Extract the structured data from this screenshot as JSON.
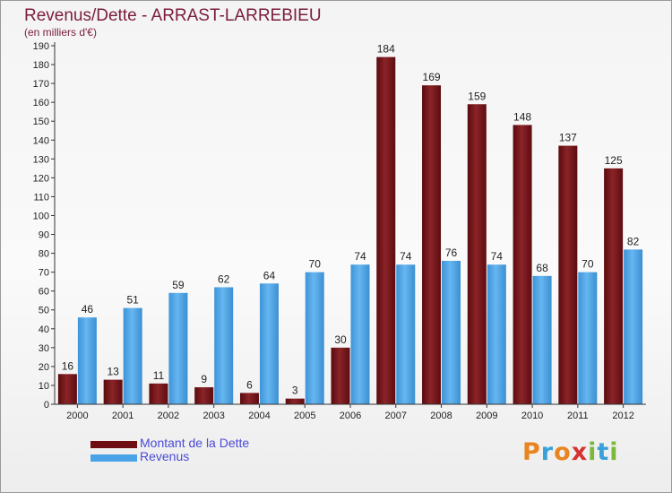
{
  "title": "Revenus/Dette - ARRAST-LARREBIEU",
  "subtitle": "(en milliers d'€)",
  "logo": {
    "text": "Proxiti",
    "colors": [
      "#e8851f",
      "#3aa0d8",
      "#e8851f",
      "#d6322e",
      "#7bb83b",
      "#3aa0d8",
      "#7bb83b"
    ]
  },
  "colors": {
    "dette": "#6e0e12",
    "revenus": "#4aa3e6",
    "title": "#7a1c3c",
    "legend_text": "#4a4ad6"
  },
  "chart_data": {
    "type": "bar",
    "categories": [
      "2000",
      "2001",
      "2002",
      "2003",
      "2004",
      "2005",
      "2006",
      "2007",
      "2008",
      "2009",
      "2010",
      "2011",
      "2012"
    ],
    "series": [
      {
        "name": "Montant de la Dette",
        "values": [
          16,
          13,
          11,
          9,
          6,
          3,
          30,
          184,
          169,
          159,
          148,
          137,
          125
        ]
      },
      {
        "name": "Revenus",
        "values": [
          46,
          51,
          59,
          62,
          64,
          70,
          74,
          74,
          76,
          74,
          68,
          70,
          82
        ]
      }
    ],
    "ylim": [
      0,
      190
    ],
    "yticks": [
      0,
      10,
      20,
      30,
      40,
      50,
      60,
      70,
      80,
      90,
      100,
      110,
      120,
      130,
      140,
      150,
      160,
      170,
      180,
      190
    ],
    "grid": false,
    "legend": "bottom-left"
  }
}
